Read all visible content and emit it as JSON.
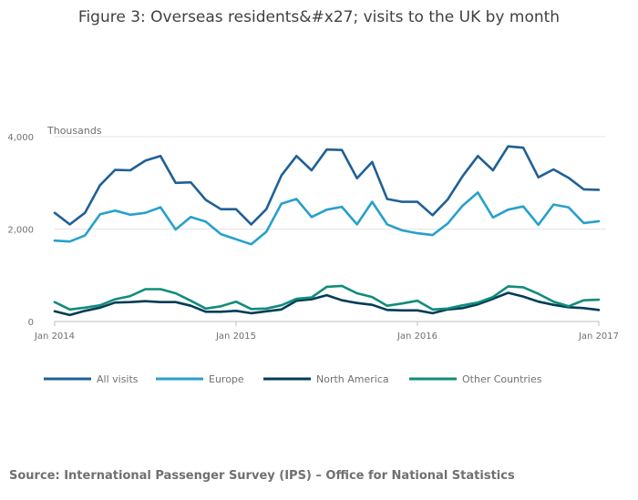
{
  "chart_data": {
    "type": "line",
    "title": "Figure 3: Overseas residents&#x27; visits to the UK by month",
    "ylabel": "Thousands",
    "xlabel": "",
    "ylim": [
      0,
      4000
    ],
    "yticks": [
      0,
      2000,
      4000
    ],
    "ytick_labels": [
      "0",
      "2,000",
      "4,000"
    ],
    "xtick_labels": [
      "Jan 2014",
      "Jan 2015",
      "Jan 2016",
      "Jan 2017"
    ],
    "xtick_index": [
      0,
      12,
      24,
      36
    ],
    "grid": true,
    "legend_position": "bottom",
    "x_count": 37,
    "series": [
      {
        "name": "All visits",
        "color": "#206095",
        "values": [
          2350,
          2100,
          2350,
          2950,
          3280,
          3270,
          3480,
          3580,
          3000,
          3010,
          2630,
          2430,
          2430,
          2100,
          2430,
          3160,
          3580,
          3270,
          3720,
          3710,
          3100,
          3450,
          2650,
          2590,
          2590,
          2300,
          2640,
          3150,
          3580,
          3270,
          3790,
          3760,
          3120,
          3290,
          3110,
          2860,
          2850
        ]
      },
      {
        "name": "Europe",
        "color": "#27a0cc",
        "values": [
          1750,
          1730,
          1860,
          2320,
          2400,
          2310,
          2350,
          2470,
          1990,
          2260,
          2160,
          1890,
          1780,
          1670,
          1940,
          2550,
          2650,
          2260,
          2420,
          2480,
          2100,
          2590,
          2100,
          1970,
          1910,
          1870,
          2120,
          2510,
          2790,
          2250,
          2420,
          2490,
          2090,
          2530,
          2470,
          2130,
          2170
        ]
      },
      {
        "name": "North America",
        "color": "#003c57",
        "values": [
          220,
          140,
          230,
          300,
          410,
          420,
          440,
          420,
          420,
          340,
          210,
          210,
          230,
          180,
          220,
          260,
          450,
          480,
          570,
          460,
          400,
          360,
          250,
          240,
          240,
          180,
          260,
          290,
          370,
          490,
          620,
          540,
          430,
          360,
          310,
          290,
          250
        ]
      },
      {
        "name": "Other Countries",
        "color": "#118c7b",
        "values": [
          420,
          260,
          300,
          350,
          480,
          550,
          700,
          700,
          610,
          450,
          280,
          330,
          430,
          270,
          280,
          350,
          490,
          520,
          750,
          770,
          610,
          530,
          340,
          390,
          450,
          260,
          280,
          350,
          410,
          530,
          760,
          740,
          600,
          430,
          330,
          460,
          470
        ]
      }
    ]
  },
  "source": "Source: International Passenger Survey (IPS) – Office for National Statistics"
}
